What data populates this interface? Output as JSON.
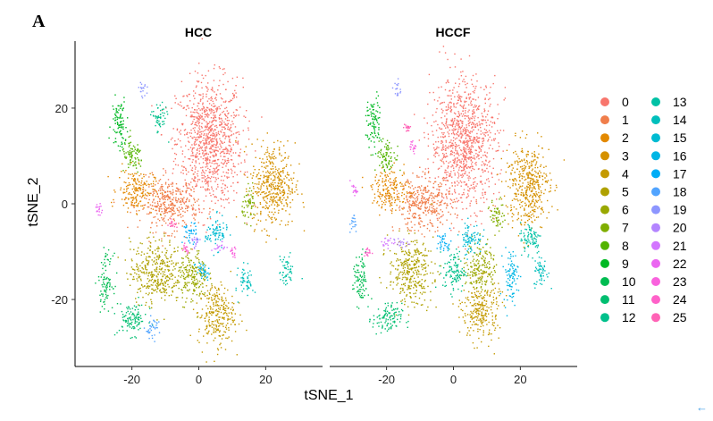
{
  "panel_label": "A",
  "corner_mark": "←",
  "chart_data": {
    "type": "scatter",
    "facets": [
      "HCC",
      "HCCF"
    ],
    "xlabel": "tSNE_1",
    "ylabel": "tSNE_2",
    "xlim": [
      -37,
      37
    ],
    "ylim": [
      -34,
      34
    ],
    "xticks": [
      -20,
      0,
      20
    ],
    "yticks": [
      20,
      0,
      -20
    ],
    "grid": false,
    "legend_position": "right",
    "legend_columns": 2,
    "legend": [
      "0",
      "1",
      "2",
      "3",
      "4",
      "5",
      "6",
      "7",
      "8",
      "9",
      "10",
      "11",
      "12",
      "13",
      "14",
      "15",
      "16",
      "17",
      "18",
      "19",
      "20",
      "21",
      "22",
      "23",
      "24",
      "25"
    ],
    "colors": [
      "#F8766D",
      "#F07E4B",
      "#E38900",
      "#D59100",
      "#C49A00",
      "#AFA100",
      "#99A800",
      "#7FAE00",
      "#53B400",
      "#00B923",
      "#00BC51",
      "#00BE70",
      "#00C08B",
      "#00C1A5",
      "#00BFBC",
      "#00BBD2",
      "#00B6E5",
      "#00ADF6",
      "#51A4FF",
      "#8D96FF",
      "#B385FF",
      "#D376FF",
      "#EB66F1",
      "#F962DD",
      "#FF61C9",
      "#FF63B6"
    ],
    "clusters": {
      "HCC": [
        {
          "id": "0",
          "center": [
            3,
            13
          ],
          "spread": [
            9,
            12
          ]
        },
        {
          "id": "1",
          "center": [
            -9,
            0
          ],
          "spread": [
            8,
            5
          ]
        },
        {
          "id": "2",
          "center": [
            -19,
            3
          ],
          "spread": [
            5,
            4
          ]
        },
        {
          "id": "3",
          "center": [
            22,
            4
          ],
          "spread": [
            6,
            8
          ]
        },
        {
          "id": "4",
          "center": [
            5,
            -23
          ],
          "spread": [
            5,
            6
          ]
        },
        {
          "id": "5",
          "center": [
            -13,
            -14
          ],
          "spread": [
            7,
            6
          ]
        },
        {
          "id": "6",
          "center": [
            -2,
            -15
          ],
          "spread": [
            4,
            5
          ]
        },
        {
          "id": "7",
          "center": [
            15,
            0
          ],
          "spread": [
            2,
            3
          ]
        },
        {
          "id": "8",
          "center": [
            -20,
            10
          ],
          "spread": [
            3,
            3
          ]
        },
        {
          "id": "9",
          "center": [
            -24,
            17
          ],
          "spread": [
            2,
            5
          ]
        },
        {
          "id": "10",
          "center": [
            -28,
            -16
          ],
          "spread": [
            2,
            5
          ]
        },
        {
          "id": "11",
          "center": [
            -20,
            -24
          ],
          "spread": [
            4,
            3
          ]
        },
        {
          "id": "12",
          "center": [
            -12,
            18
          ],
          "spread": [
            2,
            3
          ]
        },
        {
          "id": "13",
          "center": [
            26,
            -14
          ],
          "spread": [
            2,
            3
          ]
        },
        {
          "id": "14",
          "center": [
            14,
            -16
          ],
          "spread": [
            2,
            3
          ]
        },
        {
          "id": "15",
          "center": [
            5,
            -6
          ],
          "spread": [
            3,
            3
          ]
        },
        {
          "id": "16",
          "center": [
            1,
            -14
          ],
          "spread": [
            2,
            2
          ]
        },
        {
          "id": "17",
          "center": [
            -3,
            -6
          ],
          "spread": [
            2,
            2
          ]
        },
        {
          "id": "18",
          "center": [
            -14,
            -26
          ],
          "spread": [
            2,
            2
          ]
        },
        {
          "id": "19",
          "center": [
            -17,
            24
          ],
          "spread": [
            1,
            2
          ]
        },
        {
          "id": "20",
          "center": [
            -1,
            -8
          ],
          "spread": [
            1,
            1
          ]
        },
        {
          "id": "21",
          "center": [
            6,
            -9
          ],
          "spread": [
            2,
            1
          ]
        },
        {
          "id": "22",
          "center": [
            -30,
            -1
          ],
          "spread": [
            1,
            1
          ]
        },
        {
          "id": "23",
          "center": [
            10,
            -10
          ],
          "spread": [
            1,
            1
          ]
        },
        {
          "id": "24",
          "center": [
            -4,
            -9
          ],
          "spread": [
            1,
            1
          ]
        },
        {
          "id": "25",
          "center": [
            -8,
            -4
          ],
          "spread": [
            1,
            1
          ]
        }
      ],
      "HCCF": [
        {
          "id": "0",
          "center": [
            3,
            13
          ],
          "spread": [
            9,
            12
          ]
        },
        {
          "id": "1",
          "center": [
            -9,
            0
          ],
          "spread": [
            8,
            5
          ]
        },
        {
          "id": "2",
          "center": [
            -19,
            3
          ],
          "spread": [
            5,
            4
          ]
        },
        {
          "id": "3",
          "center": [
            22,
            4
          ],
          "spread": [
            6,
            8
          ]
        },
        {
          "id": "4",
          "center": [
            8,
            -22
          ],
          "spread": [
            5,
            6
          ]
        },
        {
          "id": "5",
          "center": [
            -13,
            -14
          ],
          "spread": [
            6,
            6
          ]
        },
        {
          "id": "6",
          "center": [
            8,
            -13
          ],
          "spread": [
            4,
            5
          ]
        },
        {
          "id": "7",
          "center": [
            13,
            -2
          ],
          "spread": [
            2,
            3
          ]
        },
        {
          "id": "8",
          "center": [
            -20,
            10
          ],
          "spread": [
            3,
            3
          ]
        },
        {
          "id": "9",
          "center": [
            -24,
            17
          ],
          "spread": [
            2,
            5
          ]
        },
        {
          "id": "10",
          "center": [
            -28,
            -16
          ],
          "spread": [
            2,
            5
          ]
        },
        {
          "id": "11",
          "center": [
            -20,
            -24
          ],
          "spread": [
            4,
            3
          ]
        },
        {
          "id": "12",
          "center": [
            0,
            -14
          ],
          "spread": [
            3,
            4
          ]
        },
        {
          "id": "13",
          "center": [
            23,
            -7
          ],
          "spread": [
            3,
            3
          ]
        },
        {
          "id": "14",
          "center": [
            26,
            -14
          ],
          "spread": [
            2,
            3
          ]
        },
        {
          "id": "15",
          "center": [
            5,
            -7
          ],
          "spread": [
            3,
            3
          ]
        },
        {
          "id": "16",
          "center": [
            17,
            -15
          ],
          "spread": [
            2,
            5
          ]
        },
        {
          "id": "17",
          "center": [
            -3,
            -8
          ],
          "spread": [
            2,
            2
          ]
        },
        {
          "id": "18",
          "center": [
            -30,
            -4
          ],
          "spread": [
            1,
            2
          ]
        },
        {
          "id": "19",
          "center": [
            -17,
            24
          ],
          "spread": [
            1,
            2
          ]
        },
        {
          "id": "20",
          "center": [
            -16,
            -8
          ],
          "spread": [
            2,
            1
          ]
        },
        {
          "id": "21",
          "center": [
            -20,
            -8
          ],
          "spread": [
            2,
            1
          ]
        },
        {
          "id": "22",
          "center": [
            -30,
            3
          ],
          "spread": [
            1,
            1
          ]
        },
        {
          "id": "23",
          "center": [
            -12,
            12
          ],
          "spread": [
            1,
            1
          ]
        },
        {
          "id": "24",
          "center": [
            -26,
            -10
          ],
          "spread": [
            1,
            1
          ]
        },
        {
          "id": "25",
          "center": [
            -14,
            16
          ],
          "spread": [
            1,
            1
          ]
        }
      ]
    }
  }
}
